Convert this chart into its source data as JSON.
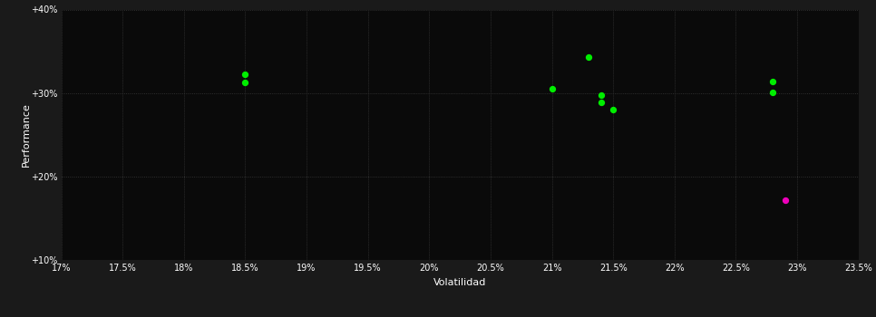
{
  "xlabel": "Volatilidad",
  "ylabel": "Performance",
  "bg_outer": "#1a1a1a",
  "bg_inner": "#0a0a0a",
  "grid_color": "#3a3a3a",
  "text_color": "#ffffff",
  "xlim": [
    0.17,
    0.235
  ],
  "ylim": [
    0.1,
    0.4
  ],
  "xticks": [
    0.17,
    0.175,
    0.18,
    0.185,
    0.19,
    0.195,
    0.2,
    0.205,
    0.21,
    0.215,
    0.22,
    0.225,
    0.23,
    0.235
  ],
  "yticks": [
    0.1,
    0.2,
    0.3,
    0.4
  ],
  "green_points": [
    [
      0.185,
      0.322
    ],
    [
      0.185,
      0.313
    ],
    [
      0.21,
      0.305
    ],
    [
      0.213,
      0.343
    ],
    [
      0.214,
      0.298
    ],
    [
      0.214,
      0.289
    ],
    [
      0.215,
      0.28
    ],
    [
      0.228,
      0.314
    ],
    [
      0.228,
      0.301
    ]
  ],
  "pink_points": [
    [
      0.229,
      0.172
    ]
  ],
  "green_color": "#00ee00",
  "pink_color": "#ee00bb",
  "point_size": 18
}
